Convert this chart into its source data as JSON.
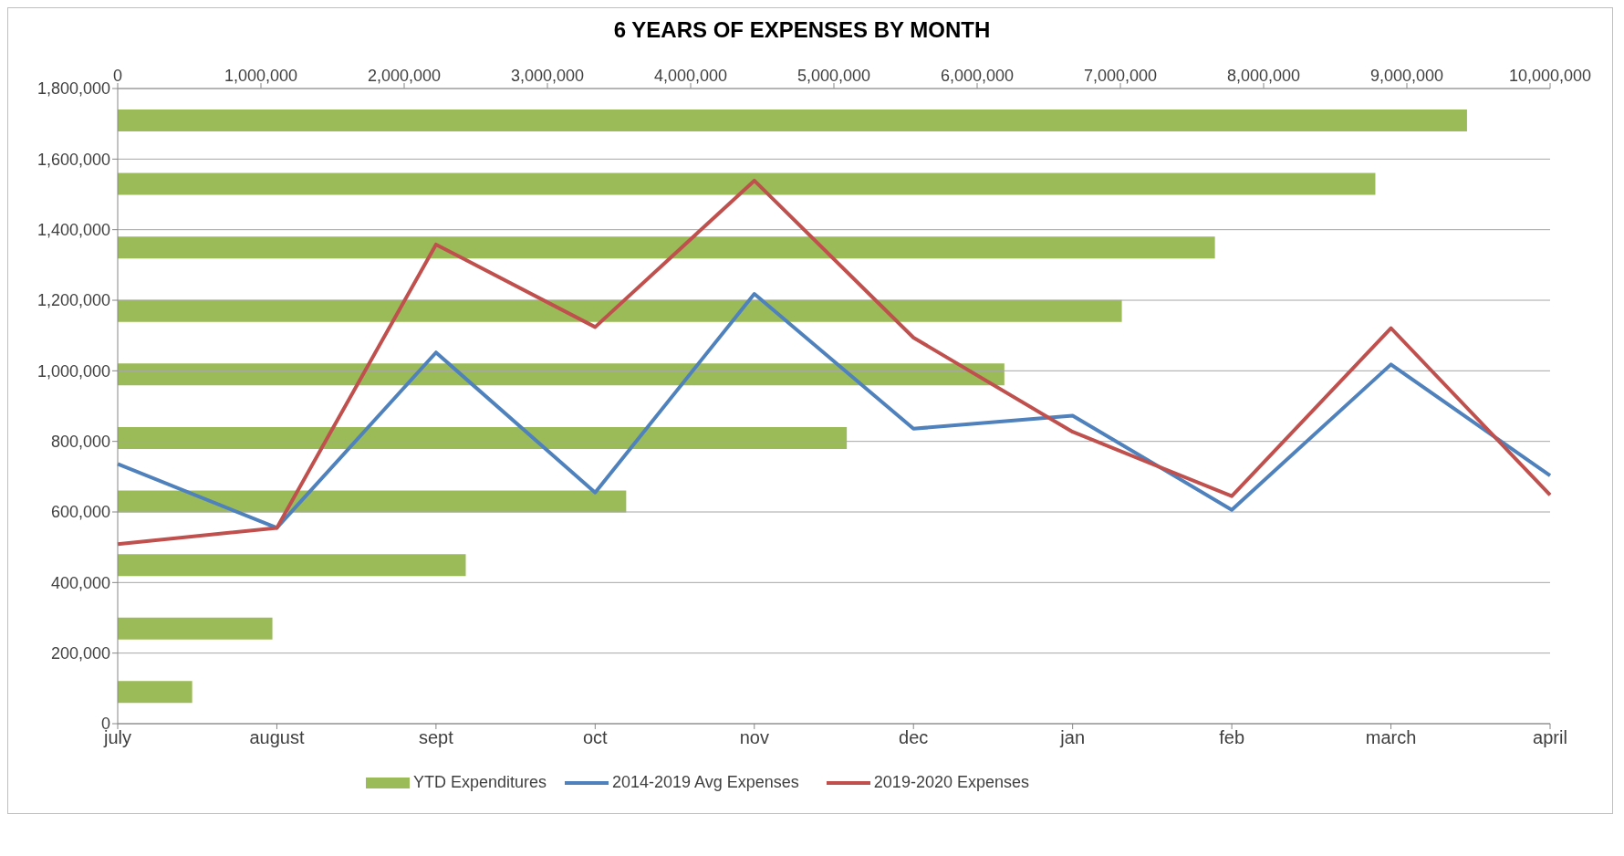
{
  "chart_data": [
    {
      "type": "bar",
      "orientation": "horizontal",
      "title": "6 YEARS OF EXPENSES BY MONTH",
      "categories": [
        null,
        null,
        null,
        null,
        null,
        null,
        null,
        null,
        null,
        null
      ],
      "xlim": [
        0,
        10000000
      ],
      "xticks": [
        {
          "value": 0,
          "label": "0"
        },
        {
          "value": 1000000,
          "label": "1,000,000"
        },
        {
          "value": 2000000,
          "label": "2,000,000"
        },
        {
          "value": 3000000,
          "label": "3,000,000"
        },
        {
          "value": 4000000,
          "label": "4,000,000"
        },
        {
          "value": 5000000,
          "label": "5,000,000"
        },
        {
          "value": 6000000,
          "label": "6,000,000"
        },
        {
          "value": 7000000,
          "label": "7,000,000"
        },
        {
          "value": 8000000,
          "label": "8,000,000"
        },
        {
          "value": 9000000,
          "label": "9,000,000"
        },
        {
          "value": 10000000,
          "label": "10,000,000"
        }
      ],
      "legend": "bottom",
      "series": [
        {
          "name": "YTD Expenditures",
          "color": "#9bbb59",
          "values": [
            9420000,
            8780000,
            7660000,
            7010000,
            6190000,
            5090000,
            3550000,
            2430000,
            1080000,
            520000
          ]
        }
      ]
    },
    {
      "type": "line",
      "categories": [
        "july",
        "august",
        "sept",
        "oct",
        "nov",
        "dec",
        "jan",
        "feb",
        "march",
        "april"
      ],
      "ylim": [
        0,
        1800000
      ],
      "yticks": [
        {
          "value": 0,
          "label": "0"
        },
        {
          "value": 200000,
          "label": "200,000"
        },
        {
          "value": 400000,
          "label": "400,000"
        },
        {
          "value": 600000,
          "label": "600,000"
        },
        {
          "value": 800000,
          "label": "800,000"
        },
        {
          "value": 1000000,
          "label": "1,000,000"
        },
        {
          "value": 1200000,
          "label": "1,200,000"
        },
        {
          "value": 1400000,
          "label": "1,400,000"
        },
        {
          "value": 1600000,
          "label": "1,600,000"
        },
        {
          "value": 1800000,
          "label": "1,800,000"
        }
      ],
      "grid": "y",
      "legend": "bottom",
      "series": [
        {
          "name": "2014-2019 Avg Expenses",
          "color": "#4f81bd",
          "values": [
            736000,
            555000,
            1052000,
            655000,
            1218000,
            836000,
            873000,
            606000,
            1018000,
            703000
          ]
        },
        {
          "name": "2019-2020 Expenses",
          "color": "#c0504d",
          "values": [
            509000,
            555000,
            1358000,
            1124000,
            1539000,
            1094000,
            827000,
            645000,
            1121000,
            648000
          ]
        }
      ]
    }
  ]
}
